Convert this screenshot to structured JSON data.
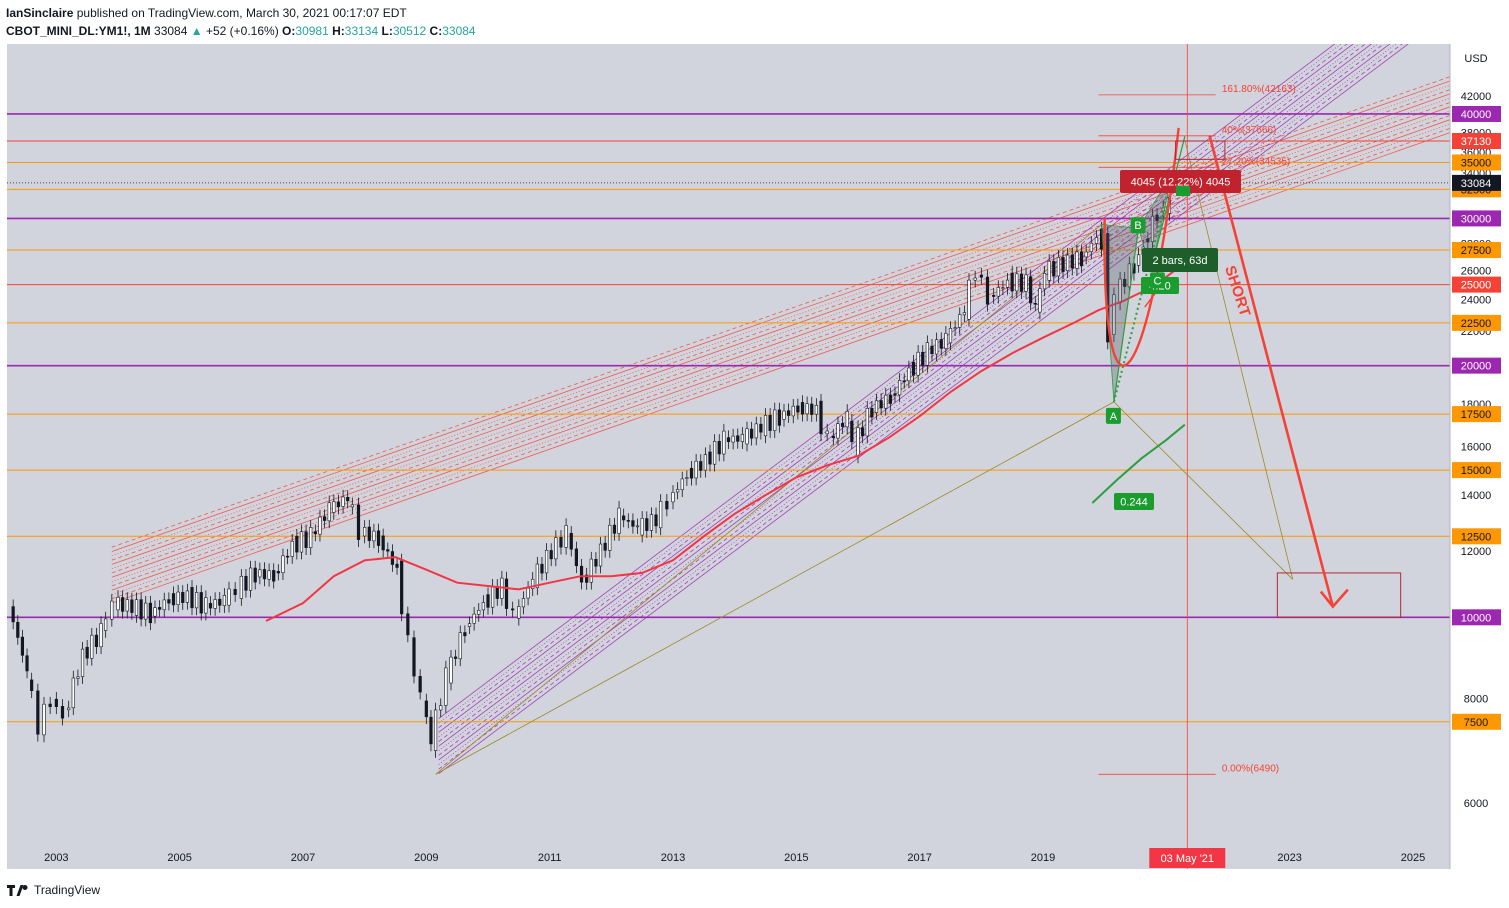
{
  "header": {
    "publisher": "IanSinclaire",
    "published_text": "published on TradingView.com, March 30, 2021 00:17:07 EDT",
    "symbol": "CBOT_MINI_DL:YM1!, 1M",
    "last": "33084",
    "change": "+52 (+0.16%)",
    "open_label": "O:",
    "open": "30981",
    "high_label": "H:",
    "high": "33134",
    "low_label": "L:",
    "low": "30512",
    "close_label": "C:",
    "close": "33084",
    "change_arrow_icon": "triangle-up-icon"
  },
  "footer": {
    "brand": "TradingView",
    "logo_icon": "tradingview-logo-icon"
  },
  "colors": {
    "purple": "#9c27b0",
    "orange": "#ff9800",
    "red": "#f44336",
    "ma_red": "#f23645",
    "ma_green": "#2e9e3e",
    "olive": "#9b8a2a",
    "bg": "#d1d4dc",
    "label_green": "#1b7a2f"
  },
  "chart_data": {
    "type": "candlestick",
    "currency": "USD",
    "y_scale": "log",
    "ylim": [
      5000,
      48500
    ],
    "xlim": [
      2002.2,
      2025.6
    ],
    "y_ticks": [
      6000,
      8000,
      12000,
      14000,
      16000,
      18000,
      22000,
      24000,
      26000,
      28000,
      34000,
      36000,
      38000,
      42000
    ],
    "x_ticks": [
      "2003",
      "2005",
      "2007",
      "2009",
      "2011",
      "2013",
      "2015",
      "2017",
      "2019",
      "2023",
      "2025"
    ],
    "x_tick_years": [
      2003,
      2005,
      2007,
      2009,
      2011,
      2013,
      2015,
      2017,
      2019,
      2023,
      2025
    ],
    "crosshair_date": "03 May '21",
    "crosshair_year": 2021.34,
    "last_price": "33084",
    "horizontal_levels": [
      {
        "value": 40000,
        "label": "40000",
        "color": "purple"
      },
      {
        "value": 37130,
        "label": "37130",
        "color": "red"
      },
      {
        "value": 35000,
        "label": "35000",
        "color": "orange"
      },
      {
        "value": 32500,
        "label": "32500",
        "color": "orange"
      },
      {
        "value": 30000,
        "label": "30000",
        "color": "purple"
      },
      {
        "value": 27500,
        "label": "27500",
        "color": "orange"
      },
      {
        "value": 25000,
        "label": "25000",
        "color": "red"
      },
      {
        "value": 22500,
        "label": "22500",
        "color": "orange"
      },
      {
        "value": 20000,
        "label": "20000",
        "color": "purple"
      },
      {
        "value": 17500,
        "label": "17500",
        "color": "orange"
      },
      {
        "value": 15000,
        "label": "15000",
        "color": "orange"
      },
      {
        "value": 12500,
        "label": "12500",
        "color": "orange"
      },
      {
        "value": 10000,
        "label": "10000",
        "color": "purple"
      },
      {
        "value": 7500,
        "label": "7500",
        "color": "orange"
      }
    ],
    "fib_levels": [
      {
        "label": "161.80%(42163)",
        "value": 42163
      },
      {
        "label": "40%(37666)",
        "value": 37666
      },
      {
        "label": "27.20%(34535)",
        "value": 34535
      },
      {
        "label": "0.00%(6490)",
        "value": 6490
      }
    ],
    "annotations": {
      "short_label": "SHORT",
      "range_label": "4045 (12.22%) 4045",
      "bars_label": "2 bars, 63d",
      "ratio_upper": "4.20",
      "ratio_lower": "0.244",
      "point_a": "A",
      "point_b": "B",
      "point_c": "C"
    },
    "price_path": [
      [
        2002.3,
        10300
      ],
      [
        2002.6,
        8600
      ],
      [
        2002.8,
        7400
      ],
      [
        2003.0,
        8000
      ],
      [
        2003.2,
        7600
      ],
      [
        2003.5,
        9000
      ],
      [
        2003.8,
        9600
      ],
      [
        2004.0,
        10400
      ],
      [
        2004.3,
        10300
      ],
      [
        2004.6,
        10100
      ],
      [
        2004.9,
        10500
      ],
      [
        2005.2,
        10600
      ],
      [
        2005.5,
        10300
      ],
      [
        2005.8,
        10500
      ],
      [
        2006.0,
        10800
      ],
      [
        2006.3,
        11300
      ],
      [
        2006.6,
        11200
      ],
      [
        2006.9,
        12200
      ],
      [
        2007.2,
        12500
      ],
      [
        2007.5,
        13500
      ],
      [
        2007.8,
        13900
      ],
      [
        2008.0,
        12700
      ],
      [
        2008.3,
        12400
      ],
      [
        2008.6,
        11400
      ],
      [
        2008.8,
        9300
      ],
      [
        2009.0,
        8000
      ],
      [
        2009.15,
        7100
      ],
      [
        2009.4,
        8500
      ],
      [
        2009.7,
        9700
      ],
      [
        2010.0,
        10400
      ],
      [
        2010.3,
        10900
      ],
      [
        2010.5,
        10000
      ],
      [
        2010.8,
        11100
      ],
      [
        2011.1,
        12000
      ],
      [
        2011.35,
        12600
      ],
      [
        2011.6,
        11000
      ],
      [
        2011.9,
        12000
      ],
      [
        2012.2,
        13200
      ],
      [
        2012.5,
        12800
      ],
      [
        2012.8,
        13100
      ],
      [
        2013.0,
        13800
      ],
      [
        2013.3,
        14800
      ],
      [
        2013.6,
        15400
      ],
      [
        2013.9,
        16300
      ],
      [
        2014.2,
        16400
      ],
      [
        2014.5,
        16900
      ],
      [
        2014.8,
        17400
      ],
      [
        2015.1,
        17800
      ],
      [
        2015.4,
        17700
      ],
      [
        2015.6,
        16300
      ],
      [
        2015.9,
        17400
      ],
      [
        2016.0,
        16000
      ],
      [
        2016.3,
        17800
      ],
      [
        2016.6,
        18300
      ],
      [
        2016.9,
        19700
      ],
      [
        2017.2,
        20800
      ],
      [
        2017.5,
        21500
      ],
      [
        2017.8,
        23300
      ],
      [
        2018.0,
        26100
      ],
      [
        2018.2,
        24100
      ],
      [
        2018.5,
        25200
      ],
      [
        2018.8,
        25100
      ],
      [
        2018.95,
        23300
      ],
      [
        2019.1,
        25900
      ],
      [
        2019.4,
        26500
      ],
      [
        2019.7,
        26900
      ],
      [
        2019.95,
        28500
      ],
      [
        2020.05,
        28200
      ],
      [
        2020.15,
        21800
      ],
      [
        2020.25,
        24300
      ],
      [
        2020.4,
        25400
      ],
      [
        2020.55,
        26400
      ],
      [
        2020.7,
        27800
      ],
      [
        2020.85,
        29600
      ],
      [
        2020.95,
        30500
      ],
      [
        2021.05,
        31000
      ],
      [
        2021.15,
        33000
      ]
    ],
    "ma_red": [
      [
        2006.4,
        9900
      ],
      [
        2007.0,
        10400
      ],
      [
        2007.5,
        11200
      ],
      [
        2008.0,
        11700
      ],
      [
        2008.5,
        11800
      ],
      [
        2009.0,
        11400
      ],
      [
        2009.5,
        11000
      ],
      [
        2010.0,
        10900
      ],
      [
        2010.5,
        10800
      ],
      [
        2011.0,
        11000
      ],
      [
        2011.5,
        11200
      ],
      [
        2012.0,
        11200
      ],
      [
        2012.5,
        11300
      ],
      [
        2013.0,
        11700
      ],
      [
        2013.5,
        12500
      ],
      [
        2014.0,
        13300
      ],
      [
        2014.5,
        14000
      ],
      [
        2015.0,
        14700
      ],
      [
        2015.5,
        15200
      ],
      [
        2016.0,
        15600
      ],
      [
        2016.5,
        16400
      ],
      [
        2017.0,
        17400
      ],
      [
        2017.5,
        18600
      ],
      [
        2018.0,
        19700
      ],
      [
        2018.5,
        20700
      ],
      [
        2019.0,
        21600
      ],
      [
        2019.5,
        22500
      ],
      [
        2019.9,
        23300
      ],
      [
        2020.3,
        23900
      ],
      [
        2020.8,
        24900
      ],
      [
        2021.2,
        26200
      ]
    ],
    "ma_green": [
      [
        2019.8,
        13700
      ],
      [
        2020.2,
        14600
      ],
      [
        2020.6,
        15500
      ],
      [
        2021.0,
        16300
      ],
      [
        2021.3,
        17000
      ]
    ]
  }
}
